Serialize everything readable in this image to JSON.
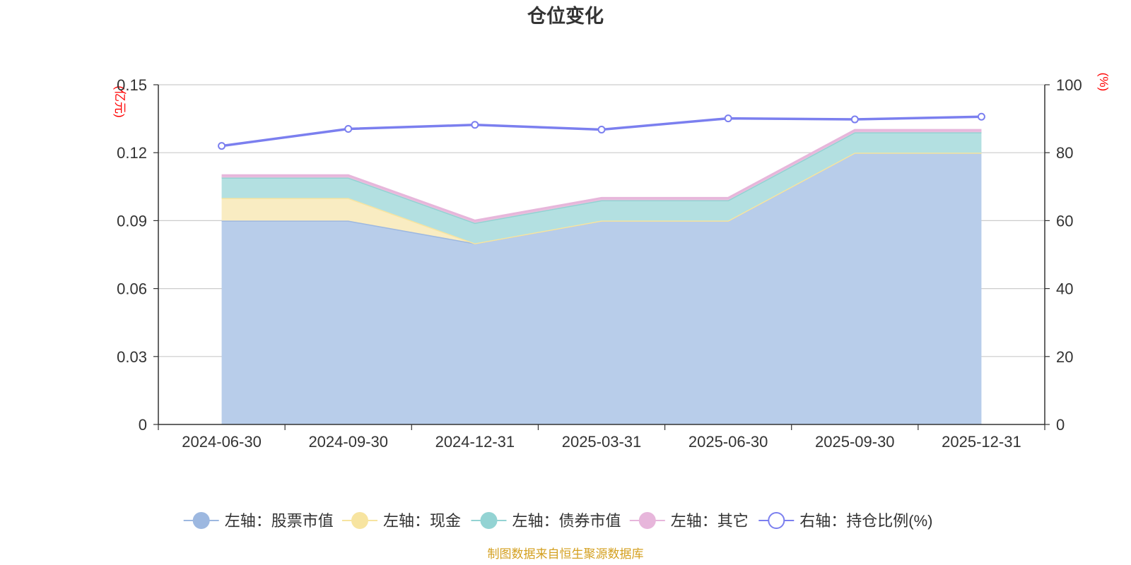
{
  "title": "仓位变化",
  "left_axis_unit": "(亿元)",
  "right_axis_unit": "(%)",
  "source": "制图数据来自恒生聚源数据库",
  "chart_data": {
    "type": "area",
    "x": [
      "2024-06-30",
      "2024-09-30",
      "2024-12-31",
      "2025-03-31",
      "2025-06-30",
      "2025-09-30",
      "2025-12-31"
    ],
    "left_ylim": [
      0,
      0.15
    ],
    "left_ticks": [
      "0",
      "0.03",
      "0.06",
      "0.09",
      "0.12",
      "0.15"
    ],
    "right_ylim": [
      0,
      100
    ],
    "right_ticks": [
      "0",
      "20",
      "40",
      "60",
      "80",
      "100"
    ],
    "grid": true,
    "legend_position": "bottom",
    "series": [
      {
        "name": "左轴：股票市值",
        "axis": "left",
        "stacked": true,
        "color": "#9db8e0",
        "fill": "#b8cdea",
        "values": [
          0.09,
          0.09,
          0.08,
          0.09,
          0.09,
          0.12,
          0.12
        ]
      },
      {
        "name": "左轴：现金",
        "axis": "left",
        "stacked": true,
        "color": "#f7e4a0",
        "fill": "#f9ecc2",
        "values": [
          0.01,
          0.01,
          0.0,
          0.0,
          0.0,
          0.0,
          0.0
        ]
      },
      {
        "name": "左轴：债券市值",
        "axis": "left",
        "stacked": true,
        "color": "#93d3d3",
        "fill": "#b3e0e1",
        "values": [
          0.009,
          0.009,
          0.009,
          0.009,
          0.009,
          0.009,
          0.009
        ]
      },
      {
        "name": "左轴：其它",
        "axis": "left",
        "stacked": true,
        "color": "#e7b6db",
        "fill": "#e7c0dd",
        "values": [
          0.001,
          0.001,
          0.001,
          0.001,
          0.001,
          0.001,
          0.001
        ]
      },
      {
        "name": "右轴：持仓比例(%)",
        "axis": "right",
        "type": "line",
        "color": "#7b7fef",
        "values": [
          82,
          87,
          88.2,
          86.8,
          90.1,
          89.8,
          90.6
        ]
      }
    ]
  }
}
